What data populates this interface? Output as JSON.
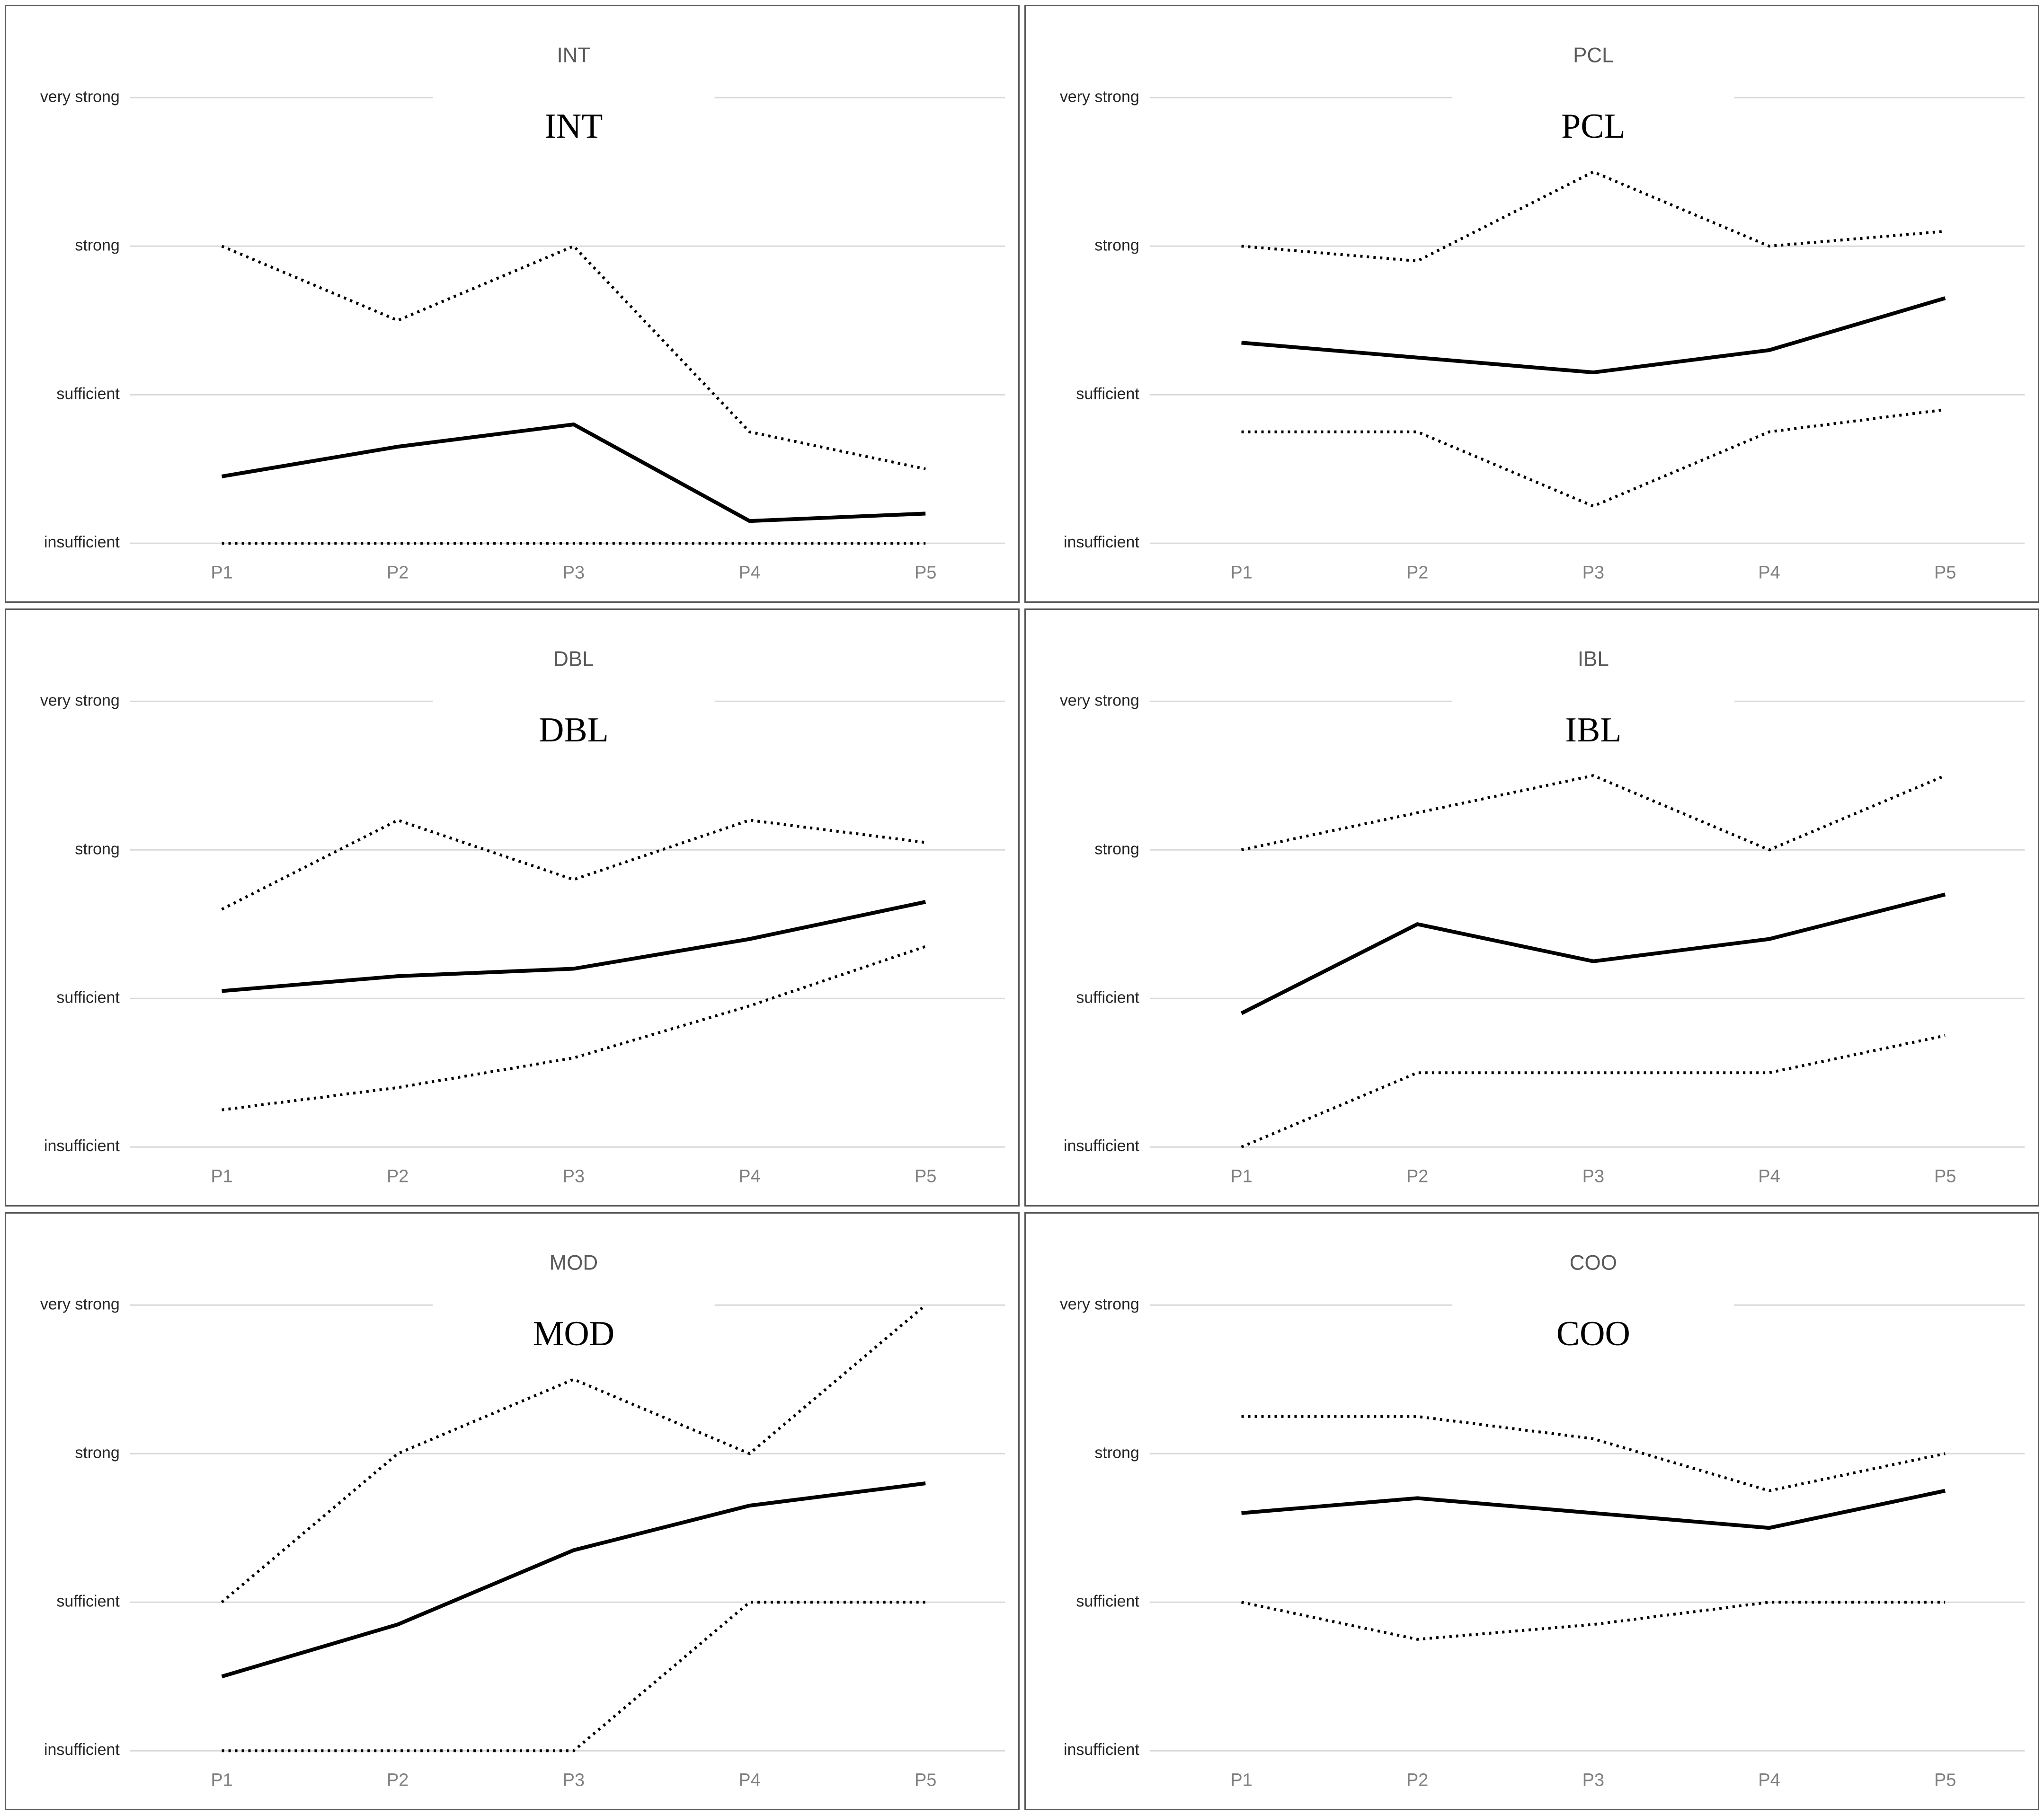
{
  "figure": {
    "kind": "small-multiples line charts",
    "rows": 3,
    "cols": 2,
    "panel_order": [
      "INT",
      "PCL",
      "DBL",
      "IBL",
      "MOD",
      "COO"
    ]
  },
  "colors": {
    "background": "#ffffff",
    "panel_border": "#5a5a5a",
    "gridline": "#d9d9d9",
    "series_line": "#000000",
    "y_label_text": "#262626",
    "x_label_text": "#808080",
    "panel_title_text": "#595959",
    "big_label_text": "#000000"
  },
  "axes": {
    "y_tick_labels": [
      "very strong",
      "strong",
      "sufficient",
      "insufficient"
    ],
    "y_value_map": {
      "insufficient": 1,
      "sufficient": 2,
      "strong": 3,
      "very strong": 4
    },
    "x_tick_labels": [
      "P1",
      "P2",
      "P3",
      "P4",
      "P5"
    ],
    "ylim": [
      1,
      4
    ],
    "grid": "horizontal-only"
  },
  "chart_data": [
    {
      "type": "line",
      "title": "INT",
      "big_label": "INT",
      "categories": [
        "P1",
        "P2",
        "P3",
        "P4",
        "P5"
      ],
      "ylabel": "",
      "xlabel": "",
      "ylim": [
        1,
        4
      ],
      "series": [
        {
          "name": "upper_dotted",
          "style": "dotted",
          "values": [
            3.0,
            2.5,
            3.0,
            1.75,
            1.5
          ]
        },
        {
          "name": "solid",
          "style": "solid",
          "values": [
            1.45,
            1.65,
            1.8,
            1.15,
            1.2
          ]
        },
        {
          "name": "lower_dotted",
          "style": "dotted",
          "values": [
            1.0,
            1.0,
            1.0,
            1.0,
            1.0
          ]
        }
      ]
    },
    {
      "type": "line",
      "title": "PCL",
      "big_label": "PCL",
      "categories": [
        "P1",
        "P2",
        "P3",
        "P4",
        "P5"
      ],
      "ylabel": "",
      "xlabel": "",
      "ylim": [
        1,
        4
      ],
      "series": [
        {
          "name": "upper_dotted",
          "style": "dotted",
          "values": [
            3.0,
            2.9,
            3.5,
            3.0,
            3.1
          ]
        },
        {
          "name": "solid",
          "style": "solid",
          "values": [
            2.35,
            2.25,
            2.15,
            2.3,
            2.65
          ]
        },
        {
          "name": "lower_dotted",
          "style": "dotted",
          "values": [
            1.75,
            1.75,
            1.25,
            1.75,
            1.9
          ]
        }
      ]
    },
    {
      "type": "line",
      "title": "DBL",
      "big_label": "DBL",
      "categories": [
        "P1",
        "P2",
        "P3",
        "P4",
        "P5"
      ],
      "ylabel": "",
      "xlabel": "",
      "ylim": [
        1,
        4
      ],
      "series": [
        {
          "name": "upper_dotted",
          "style": "dotted",
          "values": [
            2.6,
            3.2,
            2.8,
            3.2,
            3.05
          ]
        },
        {
          "name": "solid",
          "style": "solid",
          "values": [
            2.05,
            2.15,
            2.2,
            2.4,
            2.65
          ]
        },
        {
          "name": "lower_dotted",
          "style": "dotted",
          "values": [
            1.25,
            1.4,
            1.6,
            1.95,
            2.35
          ]
        }
      ]
    },
    {
      "type": "line",
      "title": "IBL",
      "big_label": "IBL",
      "categories": [
        "P1",
        "P2",
        "P3",
        "P4",
        "P5"
      ],
      "ylabel": "",
      "xlabel": "",
      "ylim": [
        1,
        4
      ],
      "series": [
        {
          "name": "upper_dotted",
          "style": "dotted",
          "values": [
            3.0,
            3.25,
            3.5,
            3.0,
            3.5
          ]
        },
        {
          "name": "solid",
          "style": "solid",
          "values": [
            1.9,
            2.5,
            2.25,
            2.4,
            2.7
          ]
        },
        {
          "name": "lower_dotted",
          "style": "dotted",
          "values": [
            1.0,
            1.5,
            1.5,
            1.5,
            1.75
          ]
        }
      ]
    },
    {
      "type": "line",
      "title": "MOD",
      "big_label": "MOD",
      "categories": [
        "P1",
        "P2",
        "P3",
        "P4",
        "P5"
      ],
      "ylabel": "",
      "xlabel": "",
      "ylim": [
        1,
        4
      ],
      "series": [
        {
          "name": "upper_dotted",
          "style": "dotted",
          "values": [
            2.0,
            3.0,
            3.5,
            3.0,
            4.0
          ]
        },
        {
          "name": "solid",
          "style": "solid",
          "values": [
            1.5,
            1.85,
            2.35,
            2.65,
            2.8
          ]
        },
        {
          "name": "lower_dotted",
          "style": "dotted",
          "values": [
            1.0,
            1.0,
            1.0,
            2.0,
            2.0
          ]
        }
      ]
    },
    {
      "type": "line",
      "title": "COO",
      "big_label": "COO",
      "categories": [
        "P1",
        "P2",
        "P3",
        "P4",
        "P5"
      ],
      "ylabel": "",
      "xlabel": "",
      "ylim": [
        1,
        4
      ],
      "series": [
        {
          "name": "upper_dotted",
          "style": "dotted",
          "values": [
            3.25,
            3.25,
            3.1,
            2.75,
            3.0
          ]
        },
        {
          "name": "solid",
          "style": "solid",
          "values": [
            2.6,
            2.7,
            2.6,
            2.5,
            2.75
          ]
        },
        {
          "name": "lower_dotted",
          "style": "dotted",
          "values": [
            2.0,
            1.75,
            1.85,
            2.0,
            2.0
          ]
        }
      ]
    }
  ]
}
